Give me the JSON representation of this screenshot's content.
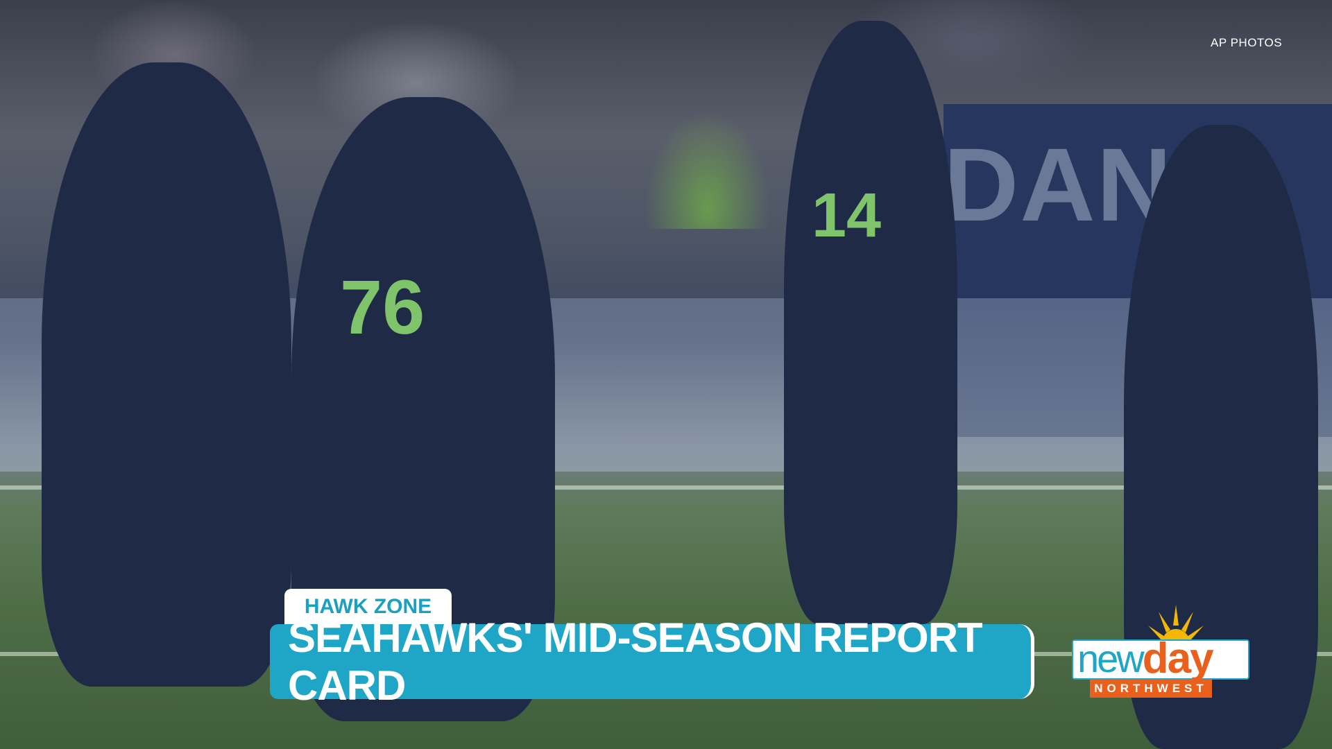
{
  "photo_credit": "AP PHOTOS",
  "lower_third": {
    "tag": "HAWK ZONE",
    "headline": "SEAHAWKS' MID-SEASON REPORT CARD",
    "accent_color": "#1fa6c6"
  },
  "logo": {
    "word1": "new",
    "word2": "day",
    "subtitle": "NORTHWEST",
    "colors": {
      "blue": "#1fa6c6",
      "orange": "#e8601c",
      "sun": "#f5b800"
    }
  },
  "scene": {
    "jersey_numbers": [
      "76",
      "14"
    ],
    "stadium_sign": "DANK"
  }
}
